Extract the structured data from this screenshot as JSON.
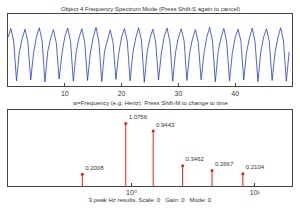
{
  "chart_data": [
    {
      "type": "line",
      "title": "Object 4 Frequency Spectrum Mode (Press Shift-S again to cancel)",
      "x": [
        0,
        0.5,
        1,
        1.5,
        2,
        2.5,
        3,
        3.5,
        4,
        4.5,
        5,
        5.5,
        6,
        6.5,
        7,
        7.5,
        8,
        8.5,
        9,
        9.5,
        10,
        10.5,
        11,
        11.5,
        12,
        12.5,
        13,
        13.5,
        14,
        14.5,
        15,
        15.5,
        16,
        16.5,
        17,
        17.5,
        18,
        18.5,
        19,
        19.5,
        20,
        20.5,
        21,
        21.5,
        22,
        22.5,
        23,
        23.5,
        24,
        24.5,
        25,
        25.5,
        26,
        26.5,
        27,
        27.5,
        28,
        28.5,
        29,
        29.5,
        30,
        30.5,
        31,
        31.5,
        32,
        32.5,
        33,
        33.5,
        34,
        34.5,
        35,
        35.5,
        36,
        36.5,
        37,
        37.5,
        38,
        38.5,
        39,
        39.5,
        40,
        40.5,
        41,
        41.5,
        42,
        42.5,
        43,
        43.5,
        44,
        44.5,
        45,
        45.5,
        46,
        46.5,
        47,
        47.5,
        48,
        48.5,
        49,
        49.5
      ],
      "values": [
        0.35,
        0.6,
        0.25,
        -0.85,
        -0.05,
        0.32,
        0.58,
        0.22,
        -0.82,
        -0.08,
        0.36,
        0.62,
        0.27,
        -0.88,
        -0.04,
        0.33,
        0.57,
        0.2,
        -0.8,
        -0.1,
        0.37,
        0.61,
        0.26,
        -0.86,
        -0.06,
        0.34,
        0.59,
        0.23,
        -0.84,
        -0.07,
        0.35,
        0.63,
        0.24,
        -0.87,
        -0.03,
        0.31,
        0.56,
        0.21,
        -0.81,
        -0.09,
        0.36,
        0.6,
        0.25,
        -0.85,
        -0.05,
        0.34,
        0.62,
        0.27,
        -0.89,
        -0.04,
        0.33,
        0.58,
        0.22,
        -0.83,
        -0.08,
        0.37,
        0.61,
        0.24,
        -0.86,
        -0.06,
        0.35,
        0.59,
        0.26,
        -0.84,
        -0.05,
        0.32,
        0.57,
        0.21,
        -0.82,
        -0.09,
        0.36,
        0.63,
        0.25,
        -0.88,
        -0.04,
        0.34,
        0.6,
        0.23,
        -0.85,
        -0.07,
        0.35,
        0.58,
        0.26,
        -0.83,
        -0.06,
        0.33,
        0.61,
        0.22,
        -0.87,
        -0.05,
        0.36,
        0.59,
        0.24,
        -0.84,
        -0.08,
        0.34,
        0.62,
        0.25,
        -0.86,
        -0.05
      ],
      "color": "#1f3fd0",
      "xlim": [
        0,
        50
      ],
      "xticks": [
        10,
        20,
        30,
        40
      ],
      "ylim": [
        -1,
        1
      ],
      "tick_labels": "x",
      "grid": false
    },
    {
      "type": "stem",
      "title": "w=Frequency (e.g. Hertz). Press Shift-M to change to time",
      "x_label": "3 peak Hz results. Scale: 0   Gain: 0   Mode: 0",
      "x": [
        0.4,
        0.9,
        1.5,
        2.6,
        4.5,
        8.0
      ],
      "values": [
        0.2008,
        1.0756,
        0.9443,
        0.3462,
        0.2667,
        0.2104
      ],
      "color": "#e02020",
      "log": "x",
      "xlim": [
        0.1,
        20
      ],
      "xticks": [
        {
          "value": 1,
          "label": "10⁰"
        },
        {
          "value": 10,
          "label": "10¹"
        }
      ],
      "ylim": [
        0,
        1.3
      ],
      "tick_labels": "x",
      "data_labels": true,
      "grid": false
    }
  ]
}
